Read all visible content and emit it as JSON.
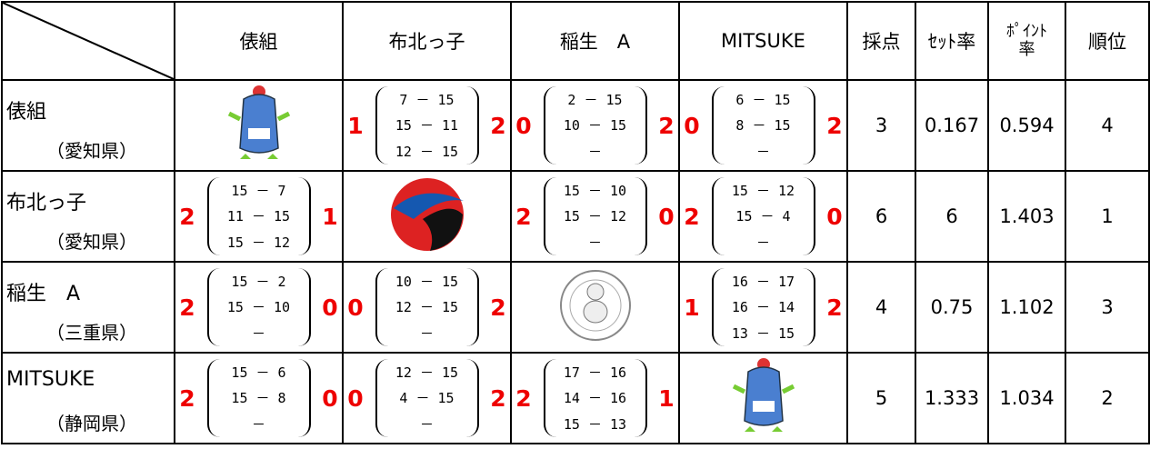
{
  "header": {
    "columns": [
      "俵組",
      "布北っ子",
      "稲生　A",
      "MITSUKE",
      "採点",
      "ｾｯﾄ率",
      "ﾎﾟｲﾝﾄ率",
      "順位"
    ]
  },
  "rows": [
    {
      "team": "俵組",
      "pref": "（愛知県）",
      "matches": [
        null,
        {
          "won": 1,
          "sets": [
            "7 － 15",
            "15 － 11",
            "12 － 15"
          ],
          "lost": 2
        },
        {
          "won": 0,
          "sets": [
            "2 － 15",
            "10 － 15",
            "－"
          ],
          "lost": 2
        },
        {
          "won": 0,
          "sets": [
            "6 － 15",
            "8 － 15",
            "－"
          ],
          "lost": 2
        }
      ],
      "points": 3,
      "set_rate": 0.167,
      "point_rate": 0.594,
      "rank": 4
    },
    {
      "team": "布北っ子",
      "pref": "（愛知県）",
      "matches": [
        {
          "won": 2,
          "sets": [
            "15 － 7",
            "11 － 15",
            "15 － 12"
          ],
          "lost": 1
        },
        null,
        {
          "won": 2,
          "sets": [
            "15 － 10",
            "15 － 12",
            "－"
          ],
          "lost": 0
        },
        {
          "won": 2,
          "sets": [
            "15 － 12",
            "15 － 4",
            "－"
          ],
          "lost": 0
        }
      ],
      "points": 6,
      "set_rate": 6,
      "point_rate": 1.403,
      "rank": 1
    },
    {
      "team": "稲生　A",
      "pref": "（三重県）",
      "matches": [
        {
          "won": 2,
          "sets": [
            "15 － 2",
            "15 － 10",
            "－"
          ],
          "lost": 0
        },
        {
          "won": 0,
          "sets": [
            "10 － 15",
            "12 － 15",
            "－"
          ],
          "lost": 2
        },
        null,
        {
          "won": 1,
          "sets": [
            "16 － 17",
            "16 － 14",
            "13 － 15"
          ],
          "lost": 2
        }
      ],
      "points": 4,
      "set_rate": 0.75,
      "point_rate": 1.102,
      "rank": 3
    },
    {
      "team": "MITSUKE",
      "pref": "（静岡県）",
      "matches": [
        {
          "won": 2,
          "sets": [
            "15 － 6",
            "15 － 8",
            "－"
          ],
          "lost": 0
        },
        {
          "won": 0,
          "sets": [
            "12 － 15",
            "4 － 15",
            "－"
          ],
          "lost": 2
        },
        {
          "won": 2,
          "sets": [
            "17 － 16",
            "14 － 16",
            "15 － 13"
          ],
          "lost": 1
        },
        null
      ],
      "points": 5,
      "set_rate": 1.333,
      "point_rate": 1.034,
      "rank": 2
    }
  ]
}
